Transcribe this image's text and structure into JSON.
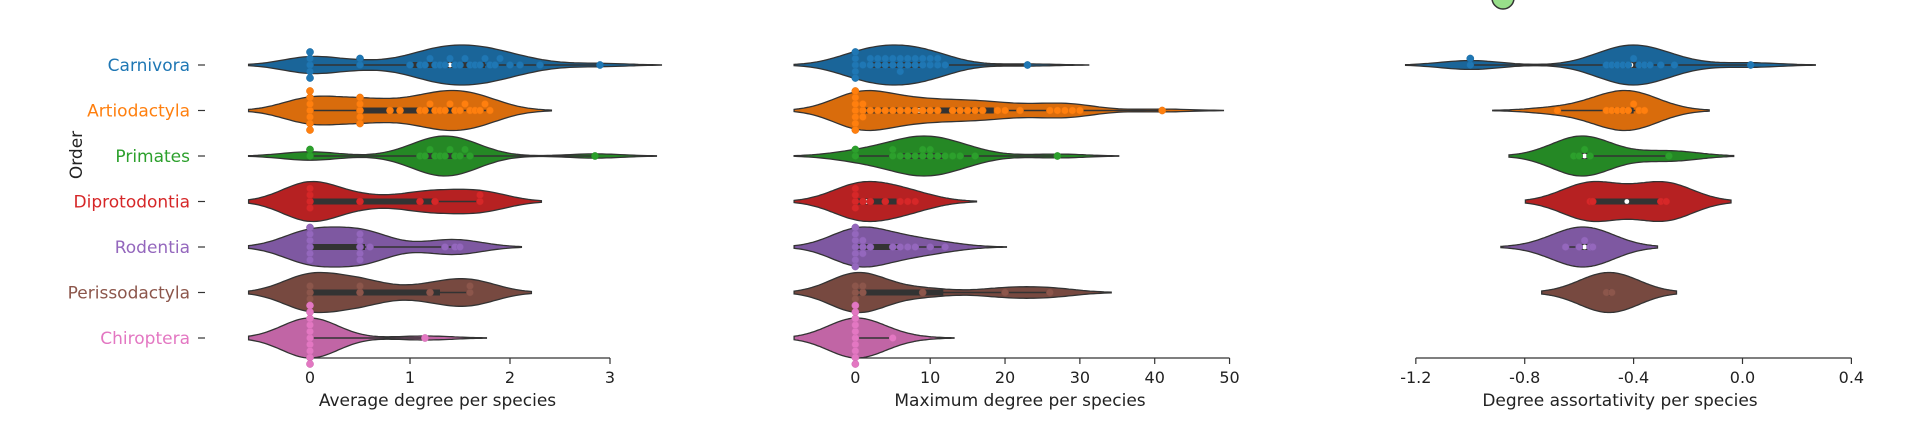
{
  "chart_data": {
    "type": "violin",
    "ylabel": "Order",
    "categories": [
      {
        "name": "Carnivora",
        "color": "#1f77b4"
      },
      {
        "name": "Artiodactyla",
        "color": "#ff7f0e"
      },
      {
        "name": "Primates",
        "color": "#2ca02c"
      },
      {
        "name": "Diprotodontia",
        "color": "#d62728"
      },
      {
        "name": "Rodentia",
        "color": "#9467bd"
      },
      {
        "name": "Perissodactyla",
        "color": "#8c564b"
      },
      {
        "name": "Chiroptera",
        "color": "#e377c2"
      }
    ],
    "panels": [
      {
        "xlabel": "Average degree per species",
        "xlim": [
          -1.05,
          3.6
        ],
        "xticks": [
          0,
          1,
          2,
          3
        ],
        "series": [
          {
            "points": [
              0,
              0,
              0,
              0,
              0,
              0.5,
              0.5,
              1.0,
              1.1,
              1.15,
              1.2,
              1.25,
              1.3,
              1.35,
              1.4,
              1.45,
              1.5,
              1.55,
              1.6,
              1.65,
              1.7,
              1.75,
              1.8,
              1.85,
              1.9,
              2.0,
              2.1,
              2.3,
              2.9
            ]
          },
          {
            "points": [
              0,
              0,
              0,
              0,
              0,
              0,
              0,
              0.5,
              0.5,
              0.5,
              0.5,
              0.5,
              0.8,
              0.9,
              1.1,
              1.15,
              1.2,
              1.25,
              1.3,
              1.35,
              1.4,
              1.45,
              1.5,
              1.55,
              1.6,
              1.65,
              1.7,
              1.75,
              1.8
            ]
          },
          {
            "points": [
              0,
              0,
              1.1,
              1.15,
              1.2,
              1.25,
              1.3,
              1.35,
              1.4,
              1.45,
              1.5,
              1.55,
              1.6,
              2.85
            ]
          },
          {
            "points": [
              0,
              0,
              0,
              0,
              0.5,
              1.1,
              1.25,
              1.7,
              1.7
            ]
          },
          {
            "points": [
              0,
              0,
              0,
              0,
              0,
              0,
              0.5,
              0.5,
              0.5,
              0.5,
              0.5,
              0.6,
              1.35,
              1.45,
              1.5
            ]
          },
          {
            "points": [
              0,
              0,
              0,
              0.5,
              0.5,
              1.2,
              1.6,
              1.6
            ]
          },
          {
            "points": [
              0,
              0,
              0,
              0,
              0,
              0,
              0,
              0,
              0,
              0,
              1.15
            ]
          }
        ]
      },
      {
        "xlabel": "Maximum degree per species",
        "xlim": [
          -9,
          53
        ],
        "xticks": [
          0,
          10,
          20,
          30,
          40,
          50
        ],
        "series": [
          {
            "points": [
              0,
              0,
              0,
              0,
              0,
              1,
              2,
              2,
              3,
              3,
              4,
              4,
              5,
              5,
              6,
              6,
              6,
              7,
              7,
              8,
              8,
              9,
              9,
              10,
              10,
              11,
              11,
              12,
              23
            ]
          },
          {
            "points": [
              0,
              0,
              0,
              0,
              0,
              0,
              0,
              1,
              1,
              1,
              2,
              3,
              4,
              5,
              6,
              7,
              8,
              9,
              10,
              11,
              13,
              14,
              15,
              16,
              17,
              19,
              20,
              22,
              26,
              27,
              28,
              29,
              30,
              41
            ]
          },
          {
            "points": [
              0,
              0,
              5,
              5,
              6,
              7,
              8,
              9,
              9,
              10,
              10,
              11,
              12,
              13,
              14,
              16,
              27
            ]
          },
          {
            "points": [
              0,
              0,
              0,
              0,
              1,
              2,
              4,
              6,
              7,
              8
            ]
          },
          {
            "points": [
              0,
              0,
              0,
              0,
              0,
              0,
              0,
              1,
              1,
              1,
              2,
              5,
              6,
              7,
              8,
              10,
              12
            ]
          },
          {
            "points": [
              0,
              0,
              0,
              1,
              1,
              9,
              20,
              26
            ]
          },
          {
            "points": [
              0,
              0,
              0,
              0,
              0,
              0,
              0,
              0,
              0,
              0,
              5
            ]
          }
        ]
      },
      {
        "xlabel": "Degree assortativity per species",
        "xlim": [
          -1.35,
          0.45
        ],
        "xticks": [
          -1.2,
          -0.8,
          -0.4,
          0.0,
          0.4
        ],
        "xtick_labels": [
          "-1.2",
          "-0.8",
          "-0.4",
          "0.0",
          "0.4"
        ],
        "series": [
          {
            "points": [
              -1.0,
              -1.0,
              -0.5,
              -0.48,
              -0.46,
              -0.44,
              -0.42,
              -0.4,
              -0.38,
              -0.36,
              -0.34,
              -0.3,
              -0.25,
              0.03
            ]
          },
          {
            "points": [
              -0.68,
              -0.5,
              -0.48,
              -0.46,
              -0.44,
              -0.42,
              -0.4,
              -0.38,
              -0.36
            ]
          },
          {
            "points": [
              -0.62,
              -0.6,
              -0.58,
              -0.56,
              -0.27
            ]
          },
          {
            "points": [
              -0.56,
              -0.55,
              -0.3,
              -0.28
            ]
          },
          {
            "points": [
              -0.65,
              -0.6,
              -0.58,
              -0.56,
              -0.55
            ]
          },
          {
            "points": [
              -0.5,
              -0.48
            ]
          },
          {
            "points": []
          }
        ]
      }
    ]
  }
}
